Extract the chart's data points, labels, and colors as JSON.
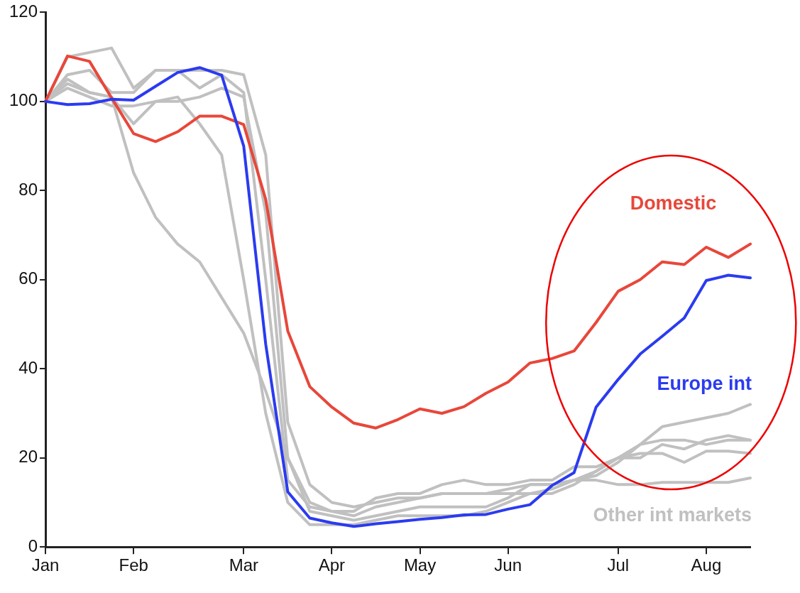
{
  "chart_data": {
    "type": "line",
    "categories": [
      "Jan",
      null,
      null,
      null,
      "Feb",
      null,
      null,
      null,
      null,
      "Mar",
      null,
      null,
      null,
      "Apr",
      null,
      null,
      null,
      "May",
      null,
      null,
      null,
      "Jun",
      null,
      null,
      null,
      null,
      "Jul",
      null,
      null,
      null,
      "Aug",
      null,
      null
    ],
    "ylim": [
      0,
      120
    ],
    "yticks": [
      0,
      20,
      40,
      60,
      80,
      100,
      120
    ],
    "grid": false,
    "legend": false,
    "marker": "none",
    "line_style": "solid",
    "series": [
      {
        "name": "Other int markets",
        "color": "#c0c0c0",
        "values": [
          100,
          104,
          102,
          101,
          84,
          74,
          68,
          64,
          56,
          48,
          35,
          20,
          10,
          8,
          7,
          9,
          10,
          11,
          12,
          12,
          12,
          13,
          14,
          14,
          15,
          15,
          14,
          14,
          14.5,
          14.5,
          14.5,
          14.5,
          15.5
        ]
      },
      {
        "color": "#c0c0c0",
        "values": [
          100,
          110,
          111,
          112,
          103,
          107,
          107,
          103,
          106,
          102,
          60,
          15,
          9,
          8,
          8,
          11,
          12,
          12,
          14,
          15,
          14,
          14,
          15,
          15,
          18,
          18,
          20,
          23,
          24,
          24,
          23,
          24,
          24
        ]
      },
      {
        "color": "#c0c0c0",
        "values": [
          100,
          106,
          107,
          102,
          102,
          107,
          107,
          107,
          107,
          106,
          88,
          28,
          14,
          10,
          9,
          10,
          11,
          11,
          12,
          12,
          12,
          12,
          12,
          13,
          15,
          16,
          19,
          23,
          27,
          28,
          29,
          30,
          32
        ]
      },
      {
        "color": "#c0c0c0",
        "values": [
          100,
          105,
          102,
          101,
          95,
          100,
          101,
          95,
          88,
          60,
          30,
          10,
          5,
          5,
          5,
          6,
          7,
          7,
          7,
          7,
          8,
          10,
          12,
          12,
          14,
          17,
          20,
          21,
          21,
          19,
          21.5,
          21.5,
          21
        ]
      },
      {
        "color": "#c0c0c0",
        "values": [
          100,
          103,
          101,
          99,
          99,
          100,
          100,
          101,
          103,
          101,
          75,
          20,
          8,
          7,
          6,
          7,
          8,
          9,
          9,
          9,
          9,
          11,
          14,
          14,
          15,
          17,
          20,
          20,
          23,
          22,
          24,
          25,
          24
        ]
      },
      {
        "name": "Domestic",
        "color": "#e8473a",
        "values": [
          100,
          110.2,
          109,
          100.8,
          92.8,
          91,
          93.2,
          96.7,
          96.7,
          94.8,
          78,
          48.5,
          36,
          31.4,
          27.8,
          26.7,
          28.6,
          31,
          30,
          31.5,
          34.5,
          37,
          41.3,
          42.3,
          44,
          50.4,
          57.4,
          60,
          64,
          63.4,
          67.3,
          65,
          68
        ]
      },
      {
        "name": "Europe int",
        "color": "#2b3bf0",
        "values": [
          100,
          99.3,
          99.5,
          100.5,
          100.3,
          103.4,
          106.5,
          107.6,
          105.9,
          90,
          45.5,
          12.4,
          6.5,
          5.4,
          4.6,
          5.2,
          5.7,
          6.2,
          6.6,
          7.2,
          7.3,
          8.5,
          9.5,
          13.8,
          16.7,
          31.4,
          37.6,
          43.3,
          47.3,
          51.4,
          59.8,
          61,
          60.4
        ]
      }
    ]
  }
}
